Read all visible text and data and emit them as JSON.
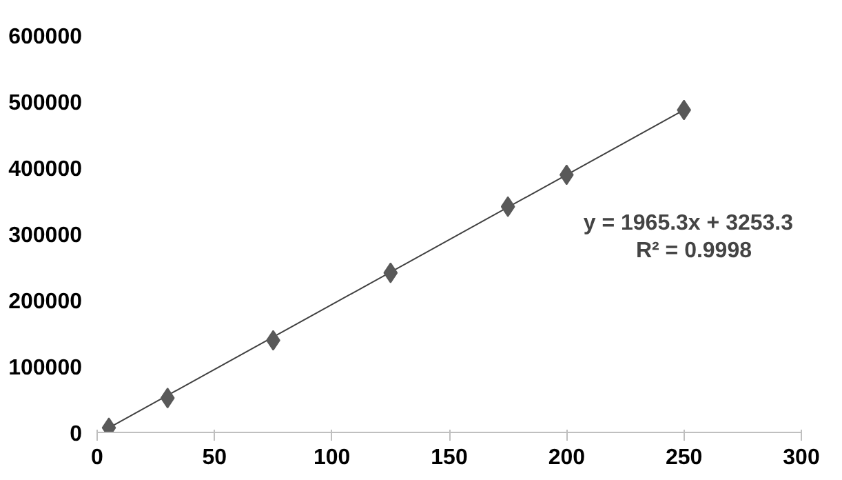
{
  "chart_data": {
    "type": "scatter",
    "marker": "diamond",
    "grid": false,
    "x": [
      5,
      30,
      75,
      125,
      175,
      200,
      250
    ],
    "xlim": [
      0,
      300
    ],
    "xticks": [
      0,
      50,
      100,
      150,
      200,
      250,
      300
    ],
    "ylim": [
      0,
      600000
    ],
    "yticks": [
      0,
      100000,
      200000,
      300000,
      400000,
      500000,
      600000
    ],
    "series": [
      {
        "color": "#595959",
        "values": [
          7000,
          52000,
          139000,
          241000,
          341000,
          389000,
          487000
        ]
      },
      {
        "type": "line",
        "marker": "none",
        "color": "#404040",
        "x": [
          5,
          250
        ],
        "values": [
          7000,
          487000
        ]
      }
    ],
    "annotations": [
      "y = 1965.3x + 3253.3",
      "R² = 0.9998"
    ]
  }
}
